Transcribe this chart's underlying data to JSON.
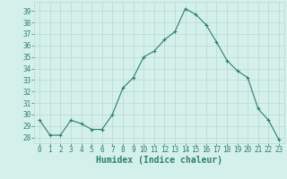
{
  "x": [
    0,
    1,
    2,
    3,
    4,
    5,
    6,
    7,
    8,
    9,
    10,
    11,
    12,
    13,
    14,
    15,
    16,
    17,
    18,
    19,
    20,
    21,
    22,
    23
  ],
  "y": [
    29.5,
    28.2,
    28.2,
    29.5,
    29.2,
    28.7,
    28.7,
    30.0,
    32.3,
    33.2,
    35.0,
    35.5,
    36.5,
    37.2,
    39.2,
    38.7,
    37.8,
    36.3,
    34.7,
    33.8,
    33.2,
    30.5,
    29.5,
    27.8
  ],
  "xlabel": "Humidex (Indice chaleur)",
  "line_color": "#2e7d6e",
  "marker": "+",
  "marker_color": "#2e7d6e",
  "bg_color": "#d4f0eb",
  "grid_color": "#b8d8d0",
  "tick_label_color": "#2e7d6e",
  "axis_label_color": "#2e7d6e",
  "ylim": [
    27.5,
    39.8
  ],
  "xlim": [
    -0.5,
    23.5
  ],
  "yticks": [
    28,
    29,
    30,
    31,
    32,
    33,
    34,
    35,
    36,
    37,
    38,
    39
  ],
  "xticks": [
    0,
    1,
    2,
    3,
    4,
    5,
    6,
    7,
    8,
    9,
    10,
    11,
    12,
    13,
    14,
    15,
    16,
    17,
    18,
    19,
    20,
    21,
    22,
    23
  ],
  "xtick_labels": [
    "0",
    "1",
    "2",
    "3",
    "4",
    "5",
    "6",
    "7",
    "8",
    "9",
    "10",
    "11",
    "12",
    "13",
    "14",
    "15",
    "16",
    "17",
    "18",
    "19",
    "20",
    "21",
    "22",
    "23"
  ],
  "xlabel_fontsize": 7,
  "tick_fontsize": 5.5,
  "linewidth": 0.8,
  "markersize": 3
}
